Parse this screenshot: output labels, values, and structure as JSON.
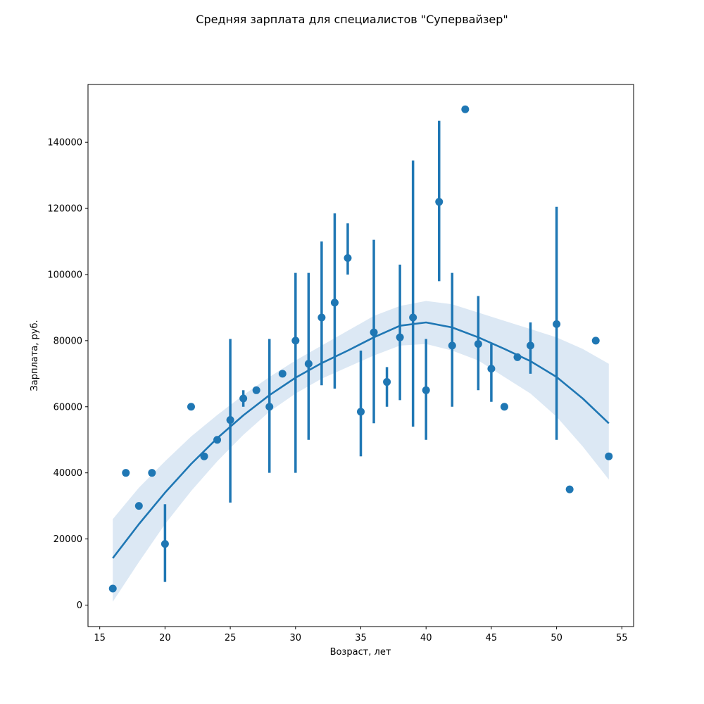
{
  "chart_data": {
    "type": "scatter",
    "title": "Средняя зарплата для специалистов \"Супервайзер\"",
    "xlabel": "Возраст, лет",
    "ylabel": "Зарплата, руб.",
    "xlim": [
      14.1,
      55.9
    ],
    "ylim": [
      -6500,
      157500
    ],
    "x_ticks": [
      15,
      20,
      25,
      30,
      35,
      40,
      45,
      50,
      55
    ],
    "y_ticks": [
      0,
      20000,
      40000,
      60000,
      80000,
      100000,
      120000,
      140000
    ],
    "grid": false,
    "colors": {
      "points": "#1f77b4",
      "fit_line": "#1f77b4",
      "ci_band": "#dce8f4"
    },
    "points": [
      {
        "x": 16,
        "y": 5000
      },
      {
        "x": 17,
        "y": 40000
      },
      {
        "x": 18,
        "y": 30000
      },
      {
        "x": 19,
        "y": 40000
      },
      {
        "x": 20,
        "y": 18500,
        "ci": [
          7000,
          30500
        ]
      },
      {
        "x": 22,
        "y": 60000
      },
      {
        "x": 23,
        "y": 45000
      },
      {
        "x": 24,
        "y": 50000
      },
      {
        "x": 25,
        "y": 56000,
        "ci": [
          31000,
          80500
        ]
      },
      {
        "x": 26,
        "y": 62500,
        "ci": [
          60000,
          65000
        ]
      },
      {
        "x": 27,
        "y": 65000
      },
      {
        "x": 28,
        "y": 60000,
        "ci": [
          40000,
          80500
        ]
      },
      {
        "x": 29,
        "y": 70000
      },
      {
        "x": 30,
        "y": 80000,
        "ci": [
          40000,
          100500
        ]
      },
      {
        "x": 31,
        "y": 73000,
        "ci": [
          50000,
          100500
        ]
      },
      {
        "x": 32,
        "y": 87000,
        "ci": [
          66500,
          110000
        ]
      },
      {
        "x": 33,
        "y": 91500,
        "ci": [
          65500,
          118500
        ]
      },
      {
        "x": 34,
        "y": 105000,
        "ci": [
          100000,
          115500
        ]
      },
      {
        "x": 35,
        "y": 58500,
        "ci": [
          45000,
          77000
        ]
      },
      {
        "x": 36,
        "y": 82500,
        "ci": [
          55000,
          110500
        ]
      },
      {
        "x": 37,
        "y": 67500,
        "ci": [
          60000,
          72000
        ]
      },
      {
        "x": 38,
        "y": 81000,
        "ci": [
          62000,
          103000
        ]
      },
      {
        "x": 39,
        "y": 87000,
        "ci": [
          54000,
          134500
        ]
      },
      {
        "x": 40,
        "y": 65000,
        "ci": [
          50000,
          80500
        ]
      },
      {
        "x": 41,
        "y": 122000,
        "ci": [
          98000,
          146500
        ]
      },
      {
        "x": 42,
        "y": 78500,
        "ci": [
          60000,
          100500
        ]
      },
      {
        "x": 43,
        "y": 150000
      },
      {
        "x": 44,
        "y": 79000,
        "ci": [
          65000,
          93500
        ]
      },
      {
        "x": 45,
        "y": 71500,
        "ci": [
          61500,
          79000
        ]
      },
      {
        "x": 46,
        "y": 60000
      },
      {
        "x": 47,
        "y": 75000
      },
      {
        "x": 48,
        "y": 78500,
        "ci": [
          70000,
          85500
        ]
      },
      {
        "x": 50,
        "y": 85000,
        "ci": [
          50000,
          120500
        ]
      },
      {
        "x": 51,
        "y": 35000
      },
      {
        "x": 53,
        "y": 80000
      },
      {
        "x": 54,
        "y": 45000
      }
    ],
    "fit": {
      "order": 2,
      "x": [
        16,
        18,
        20,
        22,
        24,
        26,
        28,
        30,
        32,
        34,
        36,
        38,
        40,
        42,
        44,
        46,
        48,
        50,
        52,
        54
      ],
      "y": [
        14200,
        24500,
        34000,
        42700,
        50500,
        57400,
        63500,
        68800,
        73200,
        77000,
        81000,
        84500,
        85500,
        84000,
        81000,
        77500,
        73800,
        69000,
        62500,
        55000
      ],
      "ci_lower": [
        1000,
        13000,
        24500,
        34500,
        43500,
        51500,
        58500,
        64000,
        68500,
        72000,
        75500,
        78500,
        79000,
        77000,
        74000,
        69000,
        64000,
        57000,
        48000,
        38000
      ],
      "ci_upper": [
        26000,
        35500,
        43500,
        51000,
        57500,
        63500,
        69000,
        74000,
        78500,
        83000,
        87500,
        90500,
        92000,
        91000,
        88500,
        86000,
        83500,
        81000,
        77500,
        73000
      ]
    }
  }
}
